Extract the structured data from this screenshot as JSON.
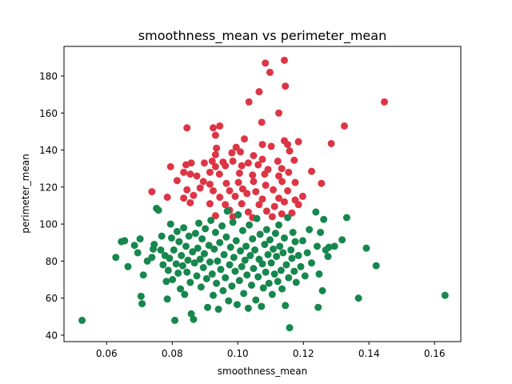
{
  "chart_data": {
    "type": "scatter",
    "title": "smoothness_mean vs perimeter_mean",
    "xlabel": "smoothness_mean",
    "ylabel": "perimeter_mean",
    "xlim": [
      0.047,
      0.168
    ],
    "ylim": [
      36.5,
      196
    ],
    "xticks": [
      0.06,
      0.08,
      0.1,
      0.12,
      0.14,
      0.16
    ],
    "xtick_labels": [
      "0.06",
      "0.08",
      "0.10",
      "0.12",
      "0.14",
      "0.16"
    ],
    "yticks": [
      40,
      60,
      80,
      100,
      120,
      140,
      160,
      180
    ],
    "ytick_labels": [
      "40",
      "60",
      "80",
      "100",
      "120",
      "140",
      "160",
      "180"
    ],
    "grid": false,
    "legend": false,
    "series": [
      {
        "color": "#dc3545",
        "points": [
          [
            0.1084,
            187
          ],
          [
            0.1142,
            188.5
          ],
          [
            0.1098,
            182
          ],
          [
            0.1145,
            174.5
          ],
          [
            0.1065,
            171.5
          ],
          [
            0.1034,
            166
          ],
          [
            0.1447,
            166
          ],
          [
            0.0845,
            152
          ],
          [
            0.0925,
            152
          ],
          [
            0.0945,
            153
          ],
          [
            0.1325,
            153
          ],
          [
            0.1125,
            160
          ],
          [
            0.1073,
            155
          ],
          [
            0.0932,
            148
          ],
          [
            0.102,
            146
          ],
          [
            0.1142,
            145
          ],
          [
            0.1285,
            143.5
          ],
          [
            0.1185,
            144.5
          ],
          [
            0.1075,
            143
          ],
          [
            0.1102,
            142
          ],
          [
            0.1152,
            143
          ],
          [
            0.0935,
            141
          ],
          [
            0.0995,
            141.5
          ],
          [
            0.1008,
            139
          ],
          [
            0.0982,
            138.5
          ],
          [
            0.1048,
            137
          ],
          [
            0.1158,
            139.5
          ],
          [
            0.0932,
            137.5
          ],
          [
            0.0922,
            134
          ],
          [
            0.0955,
            133.5
          ],
          [
            0.0985,
            134
          ],
          [
            0.1032,
            133
          ],
          [
            0.1075,
            135
          ],
          [
            0.1122,
            134
          ],
          [
            0.1172,
            134.5
          ],
          [
            0.0795,
            131
          ],
          [
            0.0842,
            132
          ],
          [
            0.0858,
            133
          ],
          [
            0.0898,
            133
          ],
          [
            0.0932,
            131
          ],
          [
            0.0962,
            131.5
          ],
          [
            0.1012,
            131.5
          ],
          [
            0.1062,
            132
          ],
          [
            0.1092,
            129.5
          ],
          [
            0.1134,
            130
          ],
          [
            0.0835,
            128
          ],
          [
            0.0855,
            127
          ],
          [
            0.0875,
            126
          ],
          [
            0.0915,
            128
          ],
          [
            0.0944,
            127
          ],
          [
            0.1005,
            127.5
          ],
          [
            0.1045,
            126.5
          ],
          [
            0.1082,
            127
          ],
          [
            0.1125,
            126
          ],
          [
            0.1155,
            128
          ],
          [
            0.1225,
            128.5
          ],
          [
            0.0815,
            123.5
          ],
          [
            0.0895,
            123
          ],
          [
            0.0915,
            121.5
          ],
          [
            0.0965,
            122
          ],
          [
            0.1002,
            122.5
          ],
          [
            0.1048,
            123
          ],
          [
            0.1085,
            121
          ],
          [
            0.1135,
            123
          ],
          [
            0.1175,
            122.5
          ],
          [
            0.1255,
            122
          ],
          [
            0.0738,
            117.5
          ],
          [
            0.0845,
            118.5
          ],
          [
            0.0885,
            119.5
          ],
          [
            0.0925,
            118
          ],
          [
            0.0975,
            118
          ],
          [
            0.1015,
            119
          ],
          [
            0.1055,
            117.5
          ],
          [
            0.1108,
            118.5
          ],
          [
            0.1152,
            118
          ],
          [
            0.1198,
            115
          ],
          [
            0.0785,
            114.5
          ],
          [
            0.0835,
            114
          ],
          [
            0.0865,
            115.5
          ],
          [
            0.0945,
            114.5
          ],
          [
            0.0992,
            115
          ],
          [
            0.1028,
            116.5
          ],
          [
            0.1075,
            113.5
          ],
          [
            0.1125,
            114
          ],
          [
            0.1175,
            113
          ],
          [
            0.0855,
            111.5
          ],
          [
            0.0915,
            111
          ],
          [
            0.0962,
            110.5
          ],
          [
            0.1012,
            111
          ],
          [
            0.1065,
            110.5
          ],
          [
            0.1112,
            109.5
          ],
          [
            0.1142,
            112
          ],
          [
            0.1185,
            110.5
          ],
          [
            0.0975,
            107.5
          ],
          [
            0.1032,
            106.5
          ],
          [
            0.1088,
            107
          ],
          [
            0.1134,
            105.5
          ],
          [
            0.1165,
            106
          ],
          [
            0.0932,
            104.5
          ],
          [
            0.0985,
            104
          ],
          [
            0.1045,
            103.5
          ],
          [
            0.1105,
            104
          ]
        ]
      },
      {
        "color": "#17874d",
        "points": [
          [
            0.0525,
            48
          ],
          [
            0.0628,
            82
          ],
          [
            0.0645,
            90.5
          ],
          [
            0.0655,
            91
          ],
          [
            0.0665,
            77
          ],
          [
            0.0685,
            88.5
          ],
          [
            0.0695,
            84.5
          ],
          [
            0.0702,
            92
          ],
          [
            0.0705,
            61
          ],
          [
            0.0708,
            57
          ],
          [
            0.0712,
            72.5
          ],
          [
            0.0724,
            80
          ],
          [
            0.0738,
            82
          ],
          [
            0.0742,
            86.5
          ],
          [
            0.0745,
            89
          ],
          [
            0.0752,
            108.5
          ],
          [
            0.0758,
            107.5
          ],
          [
            0.0765,
            86
          ],
          [
            0.0768,
            93.5
          ],
          [
            0.0772,
            78
          ],
          [
            0.0778,
            83
          ],
          [
            0.0782,
            69
          ],
          [
            0.0785,
            59.5
          ],
          [
            0.0788,
            75
          ],
          [
            0.0792,
            81.5
          ],
          [
            0.0795,
            100
          ],
          [
            0.0798,
            92.5
          ],
          [
            0.0801,
            70
          ],
          [
            0.0805,
            86
          ],
          [
            0.0808,
            48
          ],
          [
            0.0812,
            78.5
          ],
          [
            0.0815,
            96
          ],
          [
            0.0818,
            73.5
          ],
          [
            0.0821,
            90.5
          ],
          [
            0.0825,
            65
          ],
          [
            0.0828,
            83
          ],
          [
            0.0832,
            77.5
          ],
          [
            0.0835,
            98
          ],
          [
            0.0838,
            62
          ],
          [
            0.0842,
            88
          ],
          [
            0.0845,
            74
          ],
          [
            0.0848,
            80.5
          ],
          [
            0.0851,
            93.5
          ],
          [
            0.0855,
            68.5
          ],
          [
            0.0858,
            51.5
          ],
          [
            0.0862,
            85
          ],
          [
            0.0865,
            48.5
          ],
          [
            0.0868,
            79
          ],
          [
            0.0871,
            95
          ],
          [
            0.0875,
            72
          ],
          [
            0.0878,
            87
          ],
          [
            0.0881,
            100.5
          ],
          [
            0.0885,
            81
          ],
          [
            0.0888,
            66
          ],
          [
            0.0891,
            92
          ],
          [
            0.0895,
            76.5
          ],
          [
            0.0898,
            84
          ],
          [
            0.0901,
            97.5
          ],
          [
            0.0905,
            70.5
          ],
          [
            0.0908,
            55
          ],
          [
            0.0912,
            88.5
          ],
          [
            0.0915,
            79.5
          ],
          [
            0.0918,
            102
          ],
          [
            0.0922,
            73
          ],
          [
            0.0925,
            61.5
          ],
          [
            0.0928,
            86.5
          ],
          [
            0.0932,
            95.5
          ],
          [
            0.0935,
            68
          ],
          [
            0.0938,
            80
          ],
          [
            0.0941,
            54
          ],
          [
            0.0945,
            90
          ],
          [
            0.0948,
            75.5
          ],
          [
            0.0952,
            99
          ],
          [
            0.0955,
            64
          ],
          [
            0.0958,
            83.5
          ],
          [
            0.0962,
            71
          ],
          [
            0.0965,
            93
          ],
          [
            0.0968,
            107
          ],
          [
            0.0972,
            58.5
          ],
          [
            0.0975,
            78
          ],
          [
            0.0978,
            87.5
          ],
          [
            0.0982,
            66.5
          ],
          [
            0.0985,
            101
          ],
          [
            0.0988,
            82
          ],
          [
            0.0992,
            74.5
          ],
          [
            0.0995,
            91
          ],
          [
            0.0998,
            56.5
          ],
          [
            0.1001,
            105
          ],
          [
            0.1005,
            69.5
          ],
          [
            0.1008,
            85.5
          ],
          [
            0.1012,
            77
          ],
          [
            0.1015,
            96.5
          ],
          [
            0.1018,
            62.5
          ],
          [
            0.1022,
            80.5
          ],
          [
            0.1025,
            88
          ],
          [
            0.1028,
            72.5
          ],
          [
            0.1032,
            54.5
          ],
          [
            0.1035,
            99.5
          ],
          [
            0.1038,
            83
          ],
          [
            0.1042,
            67
          ],
          [
            0.1045,
            92
          ],
          [
            0.1048,
            76
          ],
          [
            0.1052,
            86
          ],
          [
            0.1055,
            59
          ],
          [
            0.1058,
            103
          ],
          [
            0.1062,
            71.5
          ],
          [
            0.1065,
            81
          ],
          [
            0.1068,
            94.5
          ],
          [
            0.1072,
            55.5
          ],
          [
            0.1075,
            78.5
          ],
          [
            0.1078,
            65.5
          ],
          [
            0.1082,
            89
          ],
          [
            0.1085,
            74
          ],
          [
            0.1088,
            97
          ],
          [
            0.1092,
            83.5
          ],
          [
            0.1095,
            68
          ],
          [
            0.1098,
            91.5
          ],
          [
            0.1102,
            79
          ],
          [
            0.1105,
            62
          ],
          [
            0.1108,
            86.5
          ],
          [
            0.1112,
            73
          ],
          [
            0.1115,
            95
          ],
          [
            0.1118,
            82.5
          ],
          [
            0.1122,
            69
          ],
          [
            0.1125,
            99.5
          ],
          [
            0.1128,
            88
          ],
          [
            0.1132,
            75
          ],
          [
            0.1135,
            65
          ],
          [
            0.1138,
            84.5
          ],
          [
            0.1142,
            92.5
          ],
          [
            0.1145,
            56
          ],
          [
            0.1148,
            78
          ],
          [
            0.1152,
            103.5
          ],
          [
            0.1155,
            71
          ],
          [
            0.1158,
            44
          ],
          [
            0.1162,
            86
          ],
          [
            0.1165,
            81.5
          ],
          [
            0.1168,
            95.5
          ],
          [
            0.1172,
            74.5
          ],
          [
            0.1175,
            90.5
          ],
          [
            0.1178,
            68.5
          ],
          [
            0.1185,
            83
          ],
          [
            0.1192,
            77
          ],
          [
            0.1198,
            91
          ],
          [
            0.1205,
            72
          ],
          [
            0.1212,
            84.5
          ],
          [
            0.1218,
            97
          ],
          [
            0.1225,
            79
          ],
          [
            0.1238,
            106.5
          ],
          [
            0.1242,
            88
          ],
          [
            0.1245,
            55
          ],
          [
            0.1248,
            73
          ],
          [
            0.1252,
            95.5
          ],
          [
            0.1258,
            64
          ],
          [
            0.1262,
            102.5
          ],
          [
            0.1268,
            86
          ],
          [
            0.1275,
            82.5
          ],
          [
            0.1278,
            87.5
          ],
          [
            0.1295,
            88
          ],
          [
            0.1318,
            91.5
          ],
          [
            0.1332,
            103.5
          ],
          [
            0.1368,
            60
          ],
          [
            0.1392,
            87
          ],
          [
            0.1422,
            77.5
          ],
          [
            0.1632,
            61.5
          ]
        ]
      }
    ]
  }
}
